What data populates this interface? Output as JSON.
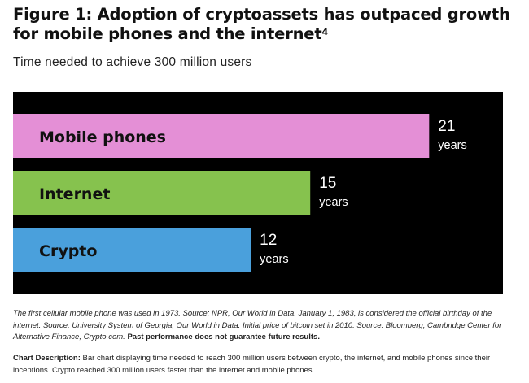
{
  "figure": {
    "title": "Figure 1: Adoption of cryptoassets has outpaced growth for mobile phones and the internet",
    "title_footnote": "4",
    "subtitle": "Time needed to achieve 300 million users"
  },
  "chart_data": {
    "type": "bar",
    "orientation": "horizontal",
    "title": "Time needed to achieve 300 million users",
    "categories": [
      "Mobile phones",
      "Internet",
      "Crypto"
    ],
    "values": [
      21,
      15,
      12
    ],
    "value_labels": [
      "21",
      "15",
      "12"
    ],
    "unit_label": "years",
    "colors": [
      "#e48fd6",
      "#86c24e",
      "#4aa0dc"
    ],
    "background": "#000000",
    "xlim": [
      0,
      23
    ],
    "grid": false,
    "legend": "none"
  },
  "notes": {
    "source_text": "The first cellular mobile phone was used in 1973. Source: NPR, Our World in Data. January 1, 1983, is considered the official birthday of the internet. Source: University System of Georgia, Our World in Data. Initial price of bitcoin set in 2010. Source: Bloomberg, Cambridge Center for Alternative Finance, Crypto.com.",
    "disclaimer": "Past performance does not guarantee future results."
  },
  "description": {
    "label": "Chart Description:",
    "text": "Bar chart displaying time needed to reach 300 million users between crypto, the internet, and mobile phones since their inceptions. Crypto reached 300 million users faster than the internet and mobile phones."
  }
}
